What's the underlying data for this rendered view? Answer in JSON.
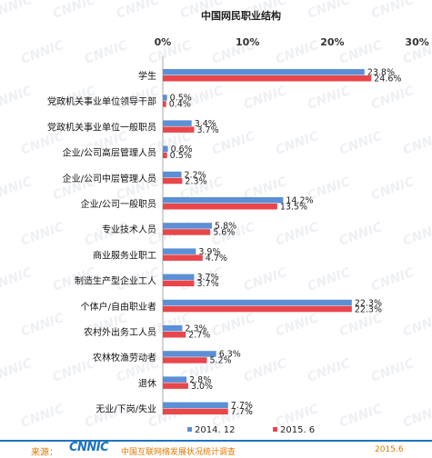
{
  "chart_data": {
    "type": "bar",
    "orientation": "horizontal",
    "title": "中国网民职业结构",
    "x_ticks": [
      "0%",
      "10%",
      "20%",
      "30%"
    ],
    "xlim": [
      0,
      30
    ],
    "categories": [
      "学生",
      "党政机关事业单位领导干部",
      "党政机关事业单位一般职员",
      "企业/公司高层管理人员",
      "企业/公司中层管理人员",
      "企业/公司一般职员",
      "专业技术人员",
      "商业服务业职工",
      "制造生产型企业工人",
      "个体户/自由职业者",
      "农村外出务工人员",
      "农林牧渔劳动者",
      "退休",
      "无业/下岗/失业"
    ],
    "series": [
      {
        "name": "2014. 12",
        "color": "#5b8fd6",
        "values": [
          23.8,
          0.5,
          3.4,
          0.6,
          2.2,
          14.2,
          5.8,
          3.9,
          3.7,
          22.3,
          2.3,
          6.3,
          2.8,
          7.7
        ],
        "labels": [
          "23.8%",
          "0.5%",
          "3.4%",
          "0.6%",
          "2.2%",
          "14.2%",
          "5.8%",
          "3.9%",
          "3.7%",
          "22.3%",
          "2.3%",
          "6.3%",
          "2.8%",
          "7.7%"
        ]
      },
      {
        "name": "2015. 6",
        "color": "#e8464b",
        "values": [
          24.6,
          0.4,
          3.7,
          0.5,
          2.3,
          13.5,
          5.6,
          4.7,
          3.7,
          22.3,
          2.7,
          5.2,
          3.0,
          7.7
        ],
        "labels": [
          "24.6%",
          "0.4%",
          "3.7%",
          "0.5%",
          "2.3%",
          "13.5%",
          "5.6%",
          "4.7%",
          "3.7%",
          "22.3%",
          "2.7%",
          "5.2%",
          "3.0%",
          "7.7%"
        ]
      }
    ],
    "legend_position": "bottom",
    "grid": false
  },
  "footer": {
    "source_label": "来源：",
    "logo_text": "CNNIC",
    "org_text": "中国互联网络发展状况统计调查",
    "date_text": "2015.6"
  },
  "watermark_text": "CNNIC"
}
